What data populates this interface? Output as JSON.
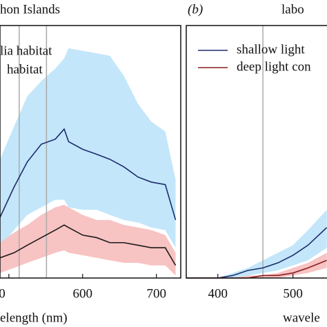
{
  "chart_data": [
    {
      "type": "line",
      "title": "hon Islands",
      "xlabel": "elength (nm)",
      "x": [
        488,
        507,
        525,
        544,
        563,
        575,
        581,
        600,
        619,
        637,
        656,
        675,
        693,
        712,
        726
      ],
      "xlim": [
        488,
        733
      ],
      "ylim": [
        0,
        1
      ],
      "xticks": [
        {
          "value": 500,
          "label": "0"
        },
        600,
        700
      ],
      "vlines": [
        514,
        551
      ],
      "series": [
        {
          "name": "lia habitat",
          "color": "#1b2a6b",
          "band_color": "#c3e6fa",
          "values": [
            0.24,
            0.36,
            0.46,
            0.53,
            0.55,
            0.59,
            0.54,
            0.51,
            0.49,
            0.47,
            0.44,
            0.4,
            0.38,
            0.37,
            0.23
          ],
          "upper": [
            0.47,
            0.6,
            0.72,
            0.78,
            0.83,
            0.87,
            0.91,
            0.9,
            0.89,
            0.88,
            0.8,
            0.69,
            0.62,
            0.58,
            0.39
          ],
          "lower": [
            0.12,
            0.19,
            0.25,
            0.28,
            0.31,
            0.31,
            0.28,
            0.27,
            0.27,
            0.25,
            0.23,
            0.22,
            0.2,
            0.19,
            0.12
          ]
        },
        {
          "name": "habitat",
          "color": "#1a1a1a",
          "band_color": "#f8c3c3",
          "values": [
            0.08,
            0.1,
            0.13,
            0.16,
            0.19,
            0.21,
            0.2,
            0.17,
            0.16,
            0.14,
            0.14,
            0.13,
            0.12,
            0.12,
            0.05
          ],
          "upper": [
            0.14,
            0.18,
            0.21,
            0.25,
            0.28,
            0.29,
            0.28,
            0.25,
            0.23,
            0.23,
            0.21,
            0.2,
            0.19,
            0.17,
            0.1
          ],
          "lower": [
            0.02,
            0.04,
            0.06,
            0.08,
            0.1,
            0.11,
            0.1,
            0.09,
            0.08,
            0.07,
            0.06,
            0.06,
            0.05,
            0.05,
            0.01
          ]
        }
      ]
    },
    {
      "type": "line",
      "panel": "(b)",
      "title": "labo",
      "xlabel": "wavele",
      "x": [
        358,
        400,
        420,
        440,
        460,
        480,
        500,
        520,
        545
      ],
      "xlim": [
        358,
        560
      ],
      "ylim": [
        0,
        1
      ],
      "xticks": [
        400,
        500
      ],
      "vlines": [
        460
      ],
      "series": [
        {
          "name": "shallow light",
          "color": "#1b2a6b",
          "band_color": "#c3e6fa",
          "values": [
            0,
            0,
            0.01,
            0.03,
            0.04,
            0.06,
            0.09,
            0.13,
            0.2
          ],
          "upper": [
            0,
            0,
            0.02,
            0.04,
            0.07,
            0.1,
            0.13,
            0.19,
            0.27
          ],
          "lower": [
            0,
            0,
            0,
            0.01,
            0.02,
            0.03,
            0.05,
            0.07,
            0.12
          ]
        },
        {
          "name": "deep light con",
          "color": "#8b1c1c",
          "band_color": "#f8c3c3",
          "values": [
            0,
            0,
            0,
            0,
            0.01,
            0.01,
            0.02,
            0.04,
            0.07
          ],
          "upper": [
            0,
            0,
            0,
            0.01,
            0.01,
            0.02,
            0.04,
            0.06,
            0.1
          ],
          "lower": [
            0,
            0,
            0,
            0,
            0,
            0,
            0.01,
            0.02,
            0.04
          ]
        }
      ]
    }
  ]
}
